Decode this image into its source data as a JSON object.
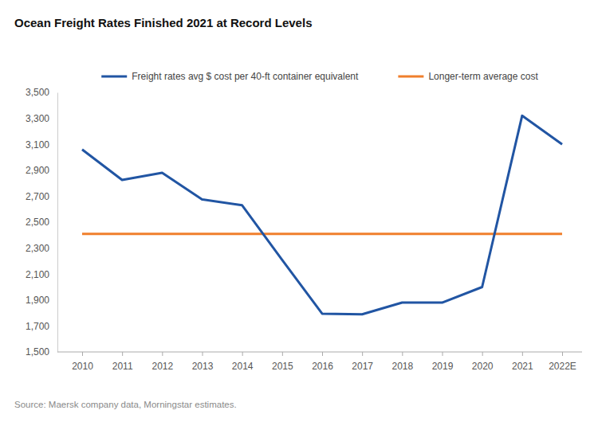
{
  "chart_data": {
    "type": "line",
    "title": "Ocean Freight Rates Finished 2021 at Record Levels",
    "source": "Source: Maersk company data, Morningstar estimates.",
    "categories": [
      "2010",
      "2011",
      "2012",
      "2013",
      "2014",
      "2015",
      "2016",
      "2017",
      "2018",
      "2019",
      "2020",
      "2021",
      "2022E"
    ],
    "series": [
      {
        "name": "Freight rates avg $ cost per 40-ft container equivalent",
        "color": "#2155a3",
        "values": [
          3060,
          2825,
          2880,
          2675,
          2630,
          2210,
          1795,
          1790,
          1880,
          1880,
          2000,
          3320,
          3100
        ]
      },
      {
        "name": "Longer-term average cost",
        "color": "#f07f2c",
        "values": [
          2410,
          2410,
          2410,
          2410,
          2410,
          2410,
          2410,
          2410,
          2410,
          2410,
          2410,
          2410,
          2410
        ]
      }
    ],
    "ylim": [
      1500,
      3500
    ],
    "yticks": [
      {
        "value": 1500,
        "label": "1,500"
      },
      {
        "value": 1700,
        "label": "1,700"
      },
      {
        "value": 1900,
        "label": "1,900"
      },
      {
        "value": 2100,
        "label": "2,100"
      },
      {
        "value": 2300,
        "label": "2,300"
      },
      {
        "value": 2500,
        "label": "2,500"
      },
      {
        "value": 2700,
        "label": "2,700"
      },
      {
        "value": 2900,
        "label": "2,900"
      },
      {
        "value": 3100,
        "label": "3,100"
      },
      {
        "value": 3300,
        "label": "3,300"
      },
      {
        "value": 3500,
        "label": "3,500"
      }
    ],
    "grid": false,
    "legend": "top"
  }
}
